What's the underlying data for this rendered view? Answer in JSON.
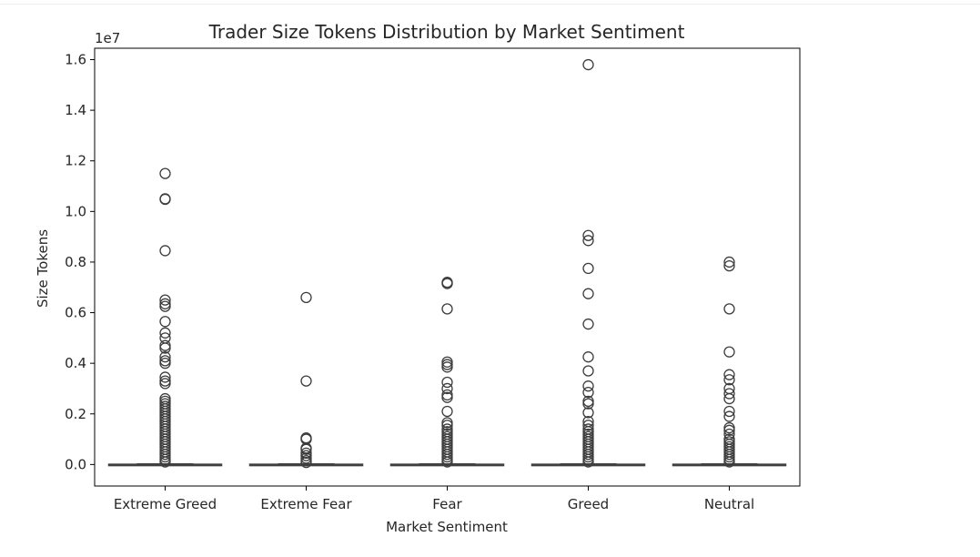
{
  "chart_data": {
    "type": "box",
    "title": "Trader Size Tokens Distribution by Market Sentiment",
    "xlabel": "Market Sentiment",
    "ylabel": "Size Tokens",
    "y_multiplier_label": "1e7",
    "y_multiplier": 10000000,
    "ylim": [
      -0.085,
      1.645
    ],
    "yticks": [
      0.0,
      0.2,
      0.4,
      0.6,
      0.8,
      1.0,
      1.2,
      1.4,
      1.6
    ],
    "ytick_labels": [
      "0.0",
      "0.2",
      "0.4",
      "0.6",
      "0.8",
      "1.0",
      "1.2",
      "1.4",
      "1.6"
    ],
    "categories": [
      "Extreme Greed",
      "Extreme Fear",
      "Fear",
      "Greed",
      "Neutral"
    ],
    "grid": false,
    "colors": {
      "box_edge": "#404040",
      "outlier_edge": "#3d3d3d",
      "axis": "#000000",
      "text": "#262626"
    },
    "groups": [
      {
        "name": "Extreme Greed",
        "box": {
          "q1": 0.0,
          "median": 0.0,
          "q3": 0.001,
          "whisker_low": 0.0,
          "whisker_high": 0.002
        },
        "outliers": [
          1.15,
          1.05,
          1.048,
          0.845,
          0.65,
          0.635,
          0.625,
          0.565,
          0.52,
          0.5,
          0.47,
          0.46,
          0.425,
          0.41,
          0.4,
          0.345,
          0.33,
          0.32,
          0.26,
          0.25,
          0.24,
          0.23,
          0.22,
          0.21,
          0.2,
          0.19,
          0.18,
          0.17,
          0.16,
          0.15,
          0.14,
          0.13,
          0.12,
          0.11,
          0.1,
          0.09,
          0.08,
          0.07,
          0.06,
          0.05,
          0.04,
          0.03,
          0.02,
          0.01
        ]
      },
      {
        "name": "Extreme Fear",
        "box": {
          "q1": 0.0,
          "median": 0.0,
          "q3": 0.001,
          "whisker_low": 0.0,
          "whisker_high": 0.002
        },
        "outliers": [
          0.66,
          0.33,
          0.105,
          0.1,
          0.065,
          0.06,
          0.045,
          0.035,
          0.025,
          0.015,
          0.008
        ]
      },
      {
        "name": "Fear",
        "box": {
          "q1": 0.0,
          "median": 0.0,
          "q3": 0.001,
          "whisker_low": 0.0,
          "whisker_high": 0.002
        },
        "outliers": [
          0.72,
          0.715,
          0.615,
          0.405,
          0.395,
          0.385,
          0.325,
          0.3,
          0.275,
          0.265,
          0.21,
          0.165,
          0.155,
          0.14,
          0.13,
          0.12,
          0.11,
          0.1,
          0.09,
          0.08,
          0.07,
          0.06,
          0.05,
          0.04,
          0.03,
          0.02,
          0.01
        ]
      },
      {
        "name": "Greed",
        "box": {
          "q1": 0.0,
          "median": 0.0,
          "q3": 0.001,
          "whisker_low": 0.0,
          "whisker_high": 0.002
        },
        "outliers": [
          1.58,
          0.905,
          0.885,
          0.775,
          0.675,
          0.555,
          0.425,
          0.37,
          0.31,
          0.285,
          0.25,
          0.24,
          0.205,
          0.17,
          0.155,
          0.14,
          0.13,
          0.12,
          0.11,
          0.1,
          0.09,
          0.08,
          0.07,
          0.06,
          0.05,
          0.04,
          0.03,
          0.02,
          0.01
        ]
      },
      {
        "name": "Neutral",
        "box": {
          "q1": 0.0,
          "median": 0.0,
          "q3": 0.001,
          "whisker_low": 0.0,
          "whisker_high": 0.002
        },
        "outliers": [
          0.8,
          0.785,
          0.615,
          0.445,
          0.355,
          0.335,
          0.3,
          0.28,
          0.26,
          0.21,
          0.19,
          0.145,
          0.135,
          0.12,
          0.1,
          0.09,
          0.08,
          0.07,
          0.06,
          0.05,
          0.04,
          0.03,
          0.02,
          0.01
        ]
      }
    ]
  }
}
